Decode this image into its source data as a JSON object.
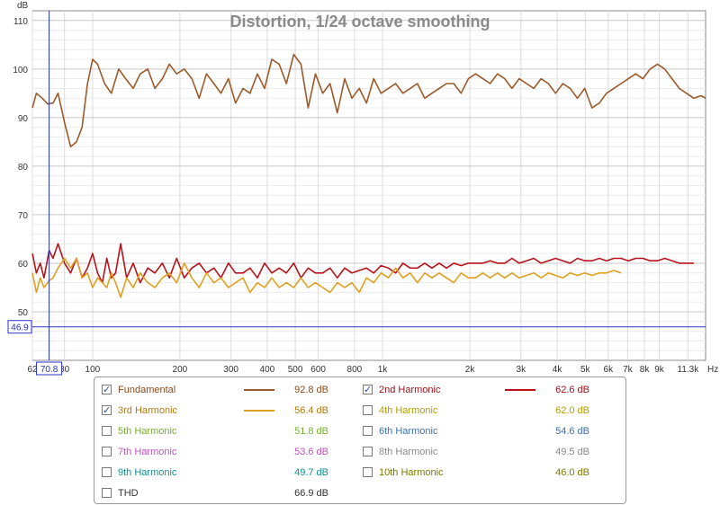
{
  "chart_data": {
    "type": "line",
    "title": "Distortion, 1/24 octave smoothing",
    "ylabel": "dB",
    "xunit": "Hz",
    "xscale": "log",
    "xlim": [
      62,
      13000
    ],
    "ylim": [
      40,
      112
    ],
    "grid": true,
    "x_ticks": [
      "62",
      "80",
      "100",
      "200",
      "300",
      "400",
      "500",
      "600",
      "800",
      "1k",
      "2k",
      "3k",
      "4k",
      "5k",
      "6k",
      "7k",
      "8k",
      "9k",
      "11.3k"
    ],
    "y_ticks": [
      "50",
      "60",
      "70",
      "80",
      "90",
      "100",
      "110"
    ],
    "cursor": {
      "x_label": "70.8",
      "y_label": "46.9"
    },
    "series": [
      {
        "name": "Fundamental",
        "color": "#9c5a2a",
        "x": [
          62,
          64,
          67,
          70,
          73,
          76,
          80,
          84,
          88,
          92,
          96,
          100,
          104,
          110,
          116,
          123,
          130,
          138,
          146,
          155,
          164,
          174,
          184,
          195,
          207,
          220,
          233,
          247,
          262,
          277,
          294,
          311,
          330,
          349,
          370,
          392,
          415,
          440,
          466,
          494,
          523,
          554,
          587,
          622,
          659,
          698,
          740,
          784,
          831,
          880,
          932,
          988,
          1047,
          1109,
          1175,
          1245,
          1319,
          1397,
          1480,
          1568,
          1661,
          1760,
          1865,
          1976,
          2093,
          2217,
          2349,
          2489,
          2637,
          2794,
          2960,
          3136,
          3322,
          3520,
          3729,
          3951,
          4186,
          4435,
          4699,
          4978,
          5274,
          5588,
          5920,
          6272,
          6645,
          7040,
          7459,
          7902,
          8372,
          8870,
          9397,
          9956,
          10548,
          11175,
          11840,
          12544,
          13000
        ],
        "y": [
          92,
          95,
          94,
          92.8,
          93,
          95,
          89,
          84,
          85,
          88,
          97,
          102,
          101,
          97,
          95,
          100,
          98,
          96,
          99,
          100,
          96,
          98,
          101,
          99,
          100,
          98,
          94,
          99,
          97,
          95,
          98,
          93,
          96,
          95,
          99,
          96,
          102,
          101,
          97,
          103,
          101,
          92,
          99,
          95,
          97,
          91,
          98,
          94,
          96,
          93,
          98,
          95,
          96,
          97,
          95,
          96,
          97,
          94,
          95,
          96,
          97,
          97,
          95,
          98,
          99,
          98,
          97,
          99,
          98,
          96,
          98,
          97,
          96,
          98,
          97,
          95,
          97,
          96,
          94,
          96,
          92,
          93,
          95,
          96,
          97,
          98,
          99,
          98,
          100,
          101,
          100,
          98,
          96,
          95,
          94,
          94.5,
          94
        ]
      },
      {
        "name": "2nd Harmonic",
        "color": "#b8121a",
        "x": [
          62,
          64,
          66,
          68,
          70.8,
          73,
          76,
          80,
          84,
          88,
          92,
          96,
          100,
          104,
          108,
          112,
          116,
          120,
          125,
          131,
          138,
          146,
          155,
          164,
          174,
          184,
          195,
          207,
          220,
          233,
          247,
          262,
          277,
          294,
          311,
          330,
          349,
          370,
          392,
          415,
          440,
          466,
          494,
          523,
          554,
          587,
          622,
          659,
          698,
          740,
          784,
          831,
          880,
          932,
          988,
          1047,
          1109,
          1175,
          1245,
          1319,
          1397,
          1480,
          1568,
          1661,
          1760,
          1865,
          1976,
          2093,
          2217,
          2349,
          2489,
          2637,
          2794,
          2960,
          3136,
          3322,
          3520,
          3729,
          3951,
          4186,
          4435,
          4699,
          4978,
          5274,
          5588,
          5920,
          6272,
          6645,
          7040,
          7459,
          7902,
          8372,
          8870,
          9397,
          9956,
          10548,
          11175,
          11840
        ],
        "y": [
          62,
          58,
          60,
          57,
          62.6,
          61,
          64,
          60,
          58,
          61,
          57,
          59,
          62,
          58,
          56,
          61,
          57,
          58,
          64,
          57,
          60,
          56,
          59,
          58,
          60,
          57,
          61,
          57,
          59,
          60,
          58,
          59,
          57,
          60,
          58,
          58,
          59,
          57,
          60,
          58,
          59,
          58,
          60,
          57,
          59,
          58,
          58,
          59,
          57,
          59,
          58,
          58.5,
          59,
          58,
          59.5,
          59,
          58,
          60,
          59,
          59,
          60,
          59,
          60,
          59,
          60,
          59.5,
          60,
          60,
          60,
          60.5,
          60,
          60,
          61,
          60,
          60.5,
          61,
          60,
          60.5,
          61,
          60.5,
          60,
          61,
          60.5,
          60.5,
          61,
          60.5,
          61,
          61,
          60.5,
          61,
          61,
          60.5,
          60.5,
          61,
          60.5,
          60,
          60,
          60
        ]
      },
      {
        "name": "3rd Harmonic",
        "color": "#e0a020",
        "x": [
          62,
          64,
          66,
          68,
          70.8,
          73,
          76,
          80,
          84,
          88,
          92,
          96,
          100,
          104,
          108,
          112,
          116,
          120,
          125,
          131,
          138,
          146,
          155,
          164,
          174,
          184,
          195,
          207,
          220,
          233,
          247,
          262,
          277,
          294,
          311,
          330,
          349,
          370,
          392,
          415,
          440,
          466,
          494,
          523,
          554,
          587,
          622,
          659,
          698,
          740,
          784,
          831,
          880,
          932,
          988,
          1047,
          1109,
          1175,
          1245,
          1319,
          1397,
          1480,
          1568,
          1661,
          1760,
          1865,
          1976,
          2093,
          2217,
          2349,
          2489,
          2637,
          2794,
          2960,
          3136,
          3322,
          3520,
          3729,
          3951,
          4186,
          4435,
          4699,
          4978,
          5274,
          5588,
          5920,
          6272,
          6645
        ],
        "y": [
          58,
          54,
          57,
          55,
          56.4,
          57,
          59,
          61,
          59,
          61,
          57,
          58,
          55,
          57,
          56,
          55,
          58,
          56,
          53,
          57,
          55,
          58,
          56,
          55,
          57,
          58,
          56,
          60,
          57,
          55,
          58,
          56,
          57,
          55,
          56,
          57,
          54,
          56,
          55,
          57,
          55,
          56,
          55,
          57,
          55,
          56,
          55,
          54,
          56,
          55,
          56,
          54,
          57,
          56,
          58,
          57,
          59,
          57,
          58,
          56,
          58,
          57,
          58,
          57,
          56,
          58,
          57,
          57,
          58,
          57,
          58,
          57,
          58,
          57,
          57.5,
          58,
          57,
          58,
          57.5,
          57,
          58,
          57.5,
          58,
          57.5,
          58,
          58,
          58.5,
          58
        ]
      }
    ]
  },
  "legend": {
    "items": [
      {
        "label": "Fundamental",
        "value": "92.8 dB",
        "checked": true,
        "color": "#9c5a2a",
        "text_color": "#8a4a1c",
        "show_line": true
      },
      {
        "label": "2nd Harmonic",
        "value": "62.6 dB",
        "checked": true,
        "color": "#b8121a",
        "text_color": "#9a1018",
        "show_line": true
      },
      {
        "label": "3rd Harmonic",
        "value": "56.4 dB",
        "checked": true,
        "color": "#e0a020",
        "text_color": "#b07a10",
        "show_line": true
      },
      {
        "label": "4th Harmonic",
        "value": "62.0 dB",
        "checked": false,
        "color": "#c8b000",
        "text_color": "#b0a000",
        "show_line": false
      },
      {
        "label": "5th Harmonic",
        "value": "51.8 dB",
        "checked": false,
        "color": "#88c040",
        "text_color": "#78b030",
        "show_line": false
      },
      {
        "label": "6th Harmonic",
        "value": "54.6 dB",
        "checked": false,
        "color": "#4a80c8",
        "text_color": "#3a70b8",
        "show_line": false
      },
      {
        "label": "7th Harmonic",
        "value": "53.6 dB",
        "checked": false,
        "color": "#d060d0",
        "text_color": "#c050c0",
        "show_line": false
      },
      {
        "label": "8th Harmonic",
        "value": "49.5 dB",
        "checked": false,
        "color": "#9a9a9a",
        "text_color": "#8a8a8a",
        "show_line": false
      },
      {
        "label": "9th Harmonic",
        "value": "49.7 dB",
        "checked": false,
        "color": "#20a0a0",
        "text_color": "#109090",
        "show_line": false
      },
      {
        "label": "10th Harmonic",
        "value": "46.0 dB",
        "checked": false,
        "color": "#8a8a10",
        "text_color": "#7a7a00",
        "show_line": false
      },
      {
        "label": "THD",
        "value": "66.9 dB",
        "checked": false,
        "color": "#333333",
        "text_color": "#333333",
        "show_line": false
      }
    ]
  }
}
